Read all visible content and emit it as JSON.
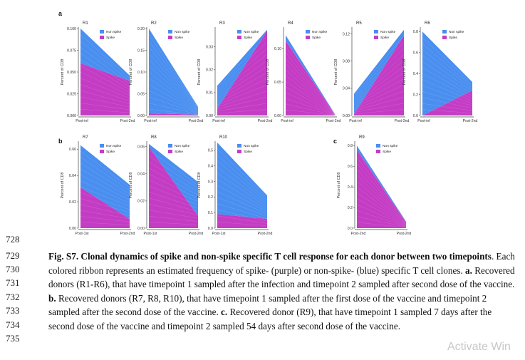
{
  "panel_labels": [
    "a",
    "b",
    "c"
  ],
  "legend": {
    "nonspike": "Non spike",
    "spike": "Spike"
  },
  "colors": {
    "nonspike": "#4a8ff0",
    "spike": "#c43cc4",
    "axis": "#444444"
  },
  "ylabel": "Percent of CD8",
  "chart_data": [
    {
      "type": "area",
      "title": "R1",
      "panel": "a",
      "categories": [
        "Post-inf",
        "Post-2nd"
      ],
      "ylim": [
        0,
        0.1
      ],
      "yticks": [
        0,
        0.025,
        0.05,
        0.075,
        0.1
      ],
      "ytick_labels": [
        "0.000",
        "0.025",
        "0.050",
        "0.075",
        "0.100"
      ],
      "series": [
        {
          "name": "Spike",
          "values": [
            0.06,
            0.04
          ]
        },
        {
          "name": "Non spike",
          "values": [
            0.04,
            0.006
          ]
        }
      ]
    },
    {
      "type": "area",
      "title": "R2",
      "panel": "a",
      "categories": [
        "Post-inf",
        "Post-2nd"
      ],
      "ylim": [
        0,
        0.2
      ],
      "yticks": [
        0,
        0.05,
        0.1,
        0.15,
        0.2
      ],
      "ytick_labels": [
        "0.00",
        "0.05",
        "0.10",
        "0.15",
        "0.20"
      ],
      "series": [
        {
          "name": "Spike",
          "values": [
            0.005,
            0.002
          ]
        },
        {
          "name": "Non spike",
          "values": [
            0.195,
            0.018
          ]
        }
      ]
    },
    {
      "type": "area",
      "title": "R3",
      "panel": "a",
      "categories": [
        "Post-inf",
        "Post-2nd"
      ],
      "ylim": [
        0,
        0.038
      ],
      "yticks": [
        0,
        0.01,
        0.02,
        0.03
      ],
      "ytick_labels": [
        "0.00",
        "0.01",
        "0.02",
        "0.03"
      ],
      "series": [
        {
          "name": "Spike",
          "values": [
            0.003,
            0.037
          ]
        },
        {
          "name": "Non spike",
          "values": [
            0.01,
            0.0005
          ]
        }
      ]
    },
    {
      "type": "area",
      "title": "R4",
      "panel": "a",
      "categories": [
        "Post-inf",
        "Post-2nd"
      ],
      "ylim": [
        0,
        0.13
      ],
      "yticks": [
        0,
        0.05,
        0.1
      ],
      "ytick_labels": [
        "0.00",
        "0.05",
        "0.10"
      ],
      "series": [
        {
          "name": "Spike",
          "values": [
            0.112,
            0.0005
          ]
        },
        {
          "name": "Non spike",
          "values": [
            0.008,
            0.0003
          ]
        }
      ]
    },
    {
      "type": "area",
      "title": "R5",
      "panel": "a",
      "categories": [
        "Post-inf",
        "Post-2nd"
      ],
      "ylim": [
        0,
        0.128
      ],
      "yticks": [
        0,
        0.04,
        0.08,
        0.12
      ],
      "ytick_labels": [
        "0.00",
        "0.04",
        "0.08",
        "0.12"
      ],
      "series": [
        {
          "name": "Spike",
          "values": [
            0.002,
            0.118
          ]
        },
        {
          "name": "Non spike",
          "values": [
            0.03,
            0.008
          ]
        }
      ]
    },
    {
      "type": "area",
      "title": "R6",
      "panel": "a",
      "categories": [
        "Post-inf",
        "Post-2nd"
      ],
      "ylim": [
        0,
        0.83
      ],
      "yticks": [
        0,
        0.2,
        0.4,
        0.6,
        0.8
      ],
      "ytick_labels": [
        "0.0",
        "0.2",
        "0.4",
        "0.6",
        "0.8"
      ],
      "series": [
        {
          "name": "Spike",
          "values": [
            0.0,
            0.24
          ]
        },
        {
          "name": "Non spike",
          "values": [
            0.8,
            0.08
          ]
        }
      ]
    },
    {
      "type": "area",
      "title": "R7",
      "panel": "b",
      "categories": [
        "Post-1st",
        "Post-2nd"
      ],
      "ylim": [
        0,
        0.065
      ],
      "yticks": [
        0,
        0.02,
        0.04,
        0.06
      ],
      "ytick_labels": [
        "0.00",
        "0.02",
        "0.04",
        "0.06"
      ],
      "series": [
        {
          "name": "Spike",
          "values": [
            0.031,
            0.007
          ]
        },
        {
          "name": "Non spike",
          "values": [
            0.032,
            0.026
          ]
        }
      ]
    },
    {
      "type": "area",
      "title": "R8",
      "panel": "b",
      "categories": [
        "Post-1st",
        "Post-2nd"
      ],
      "ylim": [
        0,
        0.063
      ],
      "yticks": [
        0,
        0.02,
        0.04,
        0.06
      ],
      "ytick_labels": [
        "0.00",
        "0.02",
        "0.04",
        "0.06"
      ],
      "series": [
        {
          "name": "Spike",
          "values": [
            0.06,
            0.009
          ]
        },
        {
          "name": "Non spike",
          "values": [
            0.002,
            0.025
          ]
        }
      ]
    },
    {
      "type": "area",
      "title": "R10",
      "panel": "b",
      "categories": [
        "Post-1st",
        "Post-2nd"
      ],
      "ylim": [
        0,
        0.55
      ],
      "yticks": [
        0,
        0.1,
        0.2,
        0.3,
        0.4,
        0.5
      ],
      "ytick_labels": [
        "0.0",
        "0.1",
        "0.2",
        "0.3",
        "0.4",
        "0.5"
      ],
      "series": [
        {
          "name": "Spike",
          "values": [
            0.09,
            0.06
          ]
        },
        {
          "name": "Non spike",
          "values": [
            0.46,
            0.15
          ]
        }
      ]
    },
    {
      "type": "area",
      "title": "R9",
      "panel": "c",
      "categories": [
        "Post-2nd",
        "Post-2nd"
      ],
      "ylim": [
        0,
        0.83
      ],
      "yticks": [
        0,
        0.2,
        0.4,
        0.6,
        0.8
      ],
      "ytick_labels": [
        "0.0",
        "0.2",
        "0.4",
        "0.6",
        "0.8"
      ],
      "series": [
        {
          "name": "Spike",
          "values": [
            0.76,
            0.06
          ]
        },
        {
          "name": "Non spike",
          "values": [
            0.04,
            0.005
          ]
        }
      ]
    }
  ],
  "line_numbers": [
    "728",
    "729",
    "730",
    "731",
    "732",
    "733",
    "734",
    "735"
  ],
  "caption": {
    "title": "Fig. S7. Clonal dynamics of spike and non-spike specific T cell response for each donor between two timepoints",
    "intro": ". Each colored ribbon represents an estimated frequency of spike- (purple) or non-spike- (blue) specific T cell clones. ",
    "a_label": "a.",
    "a_text": " Recovered donors (R1-R6), that have timepoint 1 sampled after the infection and timepoint 2 sampled after second dose of the vaccine. ",
    "b_label": "b.",
    "b_text": " Recovered donors (R7, R8, R10), that have timepoint 1 sampled after the first dose of the vaccine and timepoint 2 sampled after the second dose of the vaccine. ",
    "c_label": "c.",
    "c_text": " Recovered donor (R9), that have timepoint 1 sampled 7 days after the second dose of the vaccine and timepoint 2 sampled 54 days after second dose of the vaccine."
  },
  "watermark": "Activate Win"
}
